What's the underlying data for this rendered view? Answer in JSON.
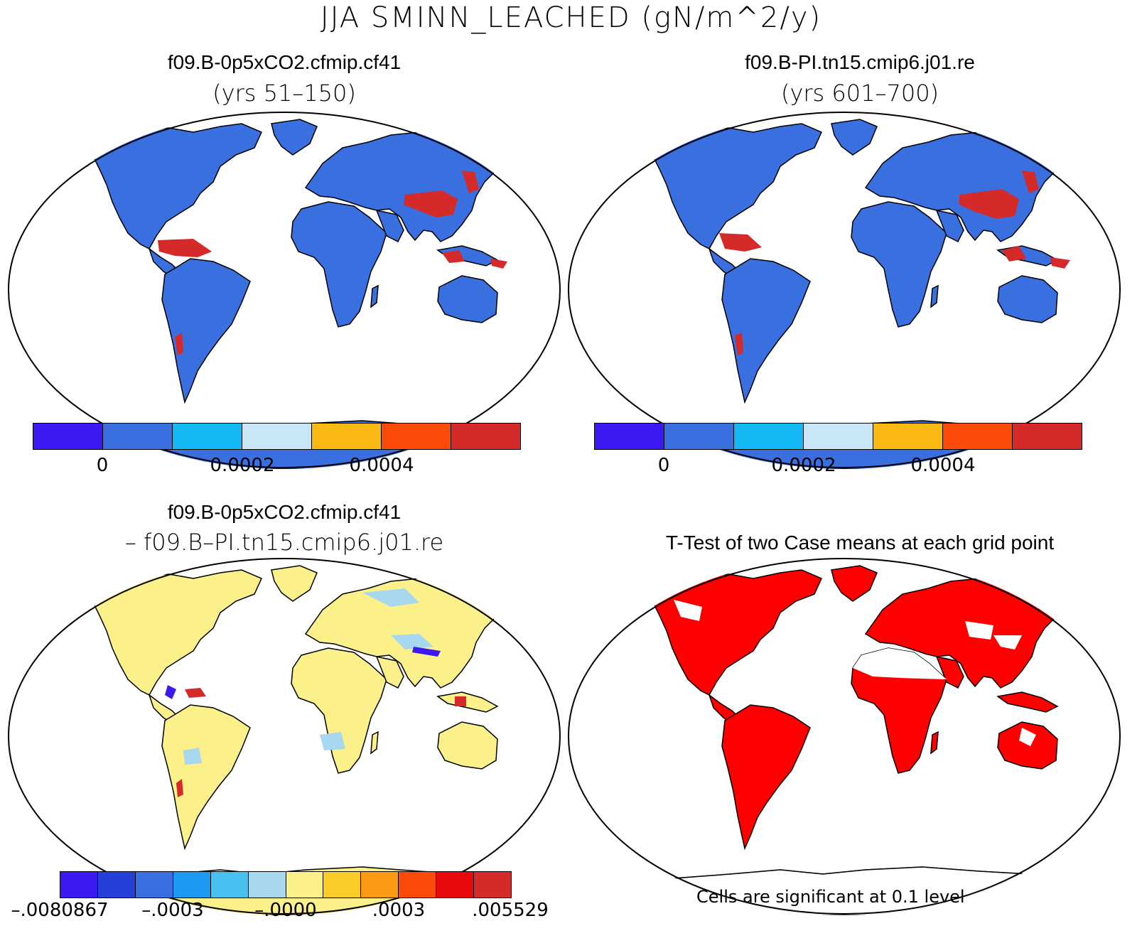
{
  "title": "JJA SMINN_LEACHED (gN/m^2/y)",
  "panels": {
    "a": {
      "title": "f09.B-0p5xCO2.cfmip.cf41",
      "subtitle": "(yrs 51–150)"
    },
    "b": {
      "title": "f09.B-PI.tn15.cmip6.j01.re",
      "subtitle": "(yrs 601–700)"
    },
    "c": {
      "title": "f09.B-0p5xCO2.cfmip.cf41",
      "subtitle": "– f09.B–PI.tn15.cmip6.j01.re"
    },
    "d": {
      "title": "T-Test of two Case means at each grid point"
    }
  },
  "colorbar_top": {
    "colors": [
      "#3a1af0",
      "#3a6fe0",
      "#14b8f5",
      "#c8e6f5",
      "#fbb914",
      "#fb4a0a",
      "#d42a2a"
    ],
    "labels": [
      "0",
      "0.0002",
      "0.0004"
    ]
  },
  "colorbar_diff": {
    "colors": [
      "#3a1af0",
      "#2440d8",
      "#3a6fe0",
      "#1a9af0",
      "#48c0f0",
      "#a8d8f0",
      "#fbf08a",
      "#fbcc28",
      "#fb9a14",
      "#fb4a0a",
      "#e80a0a",
      "#d42a2a"
    ],
    "labels": [
      "–.0080867",
      "–.0003",
      "–.0000",
      ".0003",
      ".005529"
    ]
  },
  "significance_note": "Cells are significant at 0.1 level",
  "map_colors": {
    "land_base_a": "#3a6fe0",
    "land_base_diff": "#fbf08a",
    "hot": "#d42a2a",
    "signif": "#ff0000"
  }
}
